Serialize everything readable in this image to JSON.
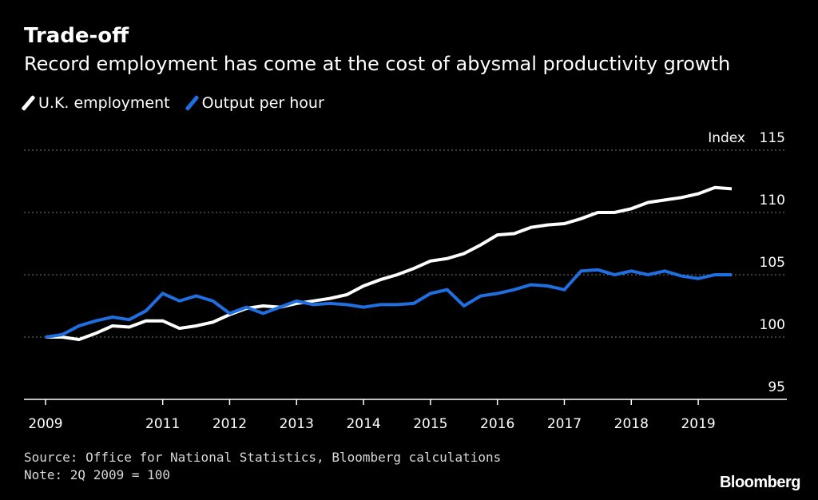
{
  "header": {
    "title": "Trade-off",
    "subtitle": "Record employment has come at the cost of abysmal productivity growth"
  },
  "legend": [
    {
      "label": "U.K. employment",
      "color": "#ffffff"
    },
    {
      "label": "Output per hour",
      "color": "#1f6fe0"
    }
  ],
  "footer": {
    "source": "Source: Office for National Statistics, Bloomberg calculations",
    "note": "Note: 2Q 2009 = 100",
    "brand": "Bloomberg"
  },
  "chart_data": {
    "type": "line",
    "ylabel": "Index",
    "ylim": [
      95,
      115
    ],
    "yticks": [
      95,
      100,
      105,
      110,
      115
    ],
    "xlim": [
      2009.25,
      2020.25
    ],
    "xticks": [
      2009,
      2011,
      2012,
      2013,
      2014,
      2015,
      2016,
      2017,
      2018,
      2019
    ],
    "grid": "horizontal dotted",
    "legend_position": "top-left",
    "x": [
      2009.25,
      2009.5,
      2009.75,
      2010.0,
      2010.25,
      2010.5,
      2010.75,
      2011.0,
      2011.25,
      2011.5,
      2011.75,
      2012.0,
      2012.25,
      2012.5,
      2012.75,
      2013.0,
      2013.25,
      2013.5,
      2013.75,
      2014.0,
      2014.25,
      2014.5,
      2014.75,
      2015.0,
      2015.25,
      2015.5,
      2015.75,
      2016.0,
      2016.25,
      2016.5,
      2016.75,
      2017.0,
      2017.25,
      2017.5,
      2017.75,
      2018.0,
      2018.25,
      2018.5,
      2018.75,
      2019.0,
      2019.25,
      2019.5
    ],
    "series": [
      {
        "name": "U.K. employment",
        "color": "#ffffff",
        "values": [
          100.0,
          100.0,
          99.8,
          100.3,
          100.9,
          100.8,
          101.3,
          101.3,
          100.7,
          100.9,
          101.2,
          101.8,
          102.3,
          102.5,
          102.4,
          102.7,
          102.9,
          103.1,
          103.4,
          104.1,
          104.6,
          105.0,
          105.5,
          106.1,
          106.3,
          106.7,
          107.4,
          108.2,
          108.3,
          108.8,
          109.0,
          109.1,
          109.5,
          110.0,
          110.0,
          110.3,
          110.8,
          111.0,
          111.2,
          111.5,
          112.0,
          111.9
        ]
      },
      {
        "name": "Output per hour",
        "color": "#1f6fe0",
        "values": [
          100.0,
          100.2,
          100.9,
          101.3,
          101.6,
          101.4,
          102.1,
          103.5,
          102.9,
          103.3,
          102.9,
          101.9,
          102.4,
          101.9,
          102.4,
          102.9,
          102.6,
          102.7,
          102.6,
          102.4,
          102.6,
          102.6,
          102.7,
          103.5,
          103.8,
          102.5,
          103.3,
          103.5,
          103.8,
          104.2,
          104.1,
          103.8,
          105.3,
          105.4,
          105.0,
          105.3,
          105.0,
          105.3,
          104.9,
          104.7,
          105.0,
          105.0
        ]
      }
    ]
  }
}
